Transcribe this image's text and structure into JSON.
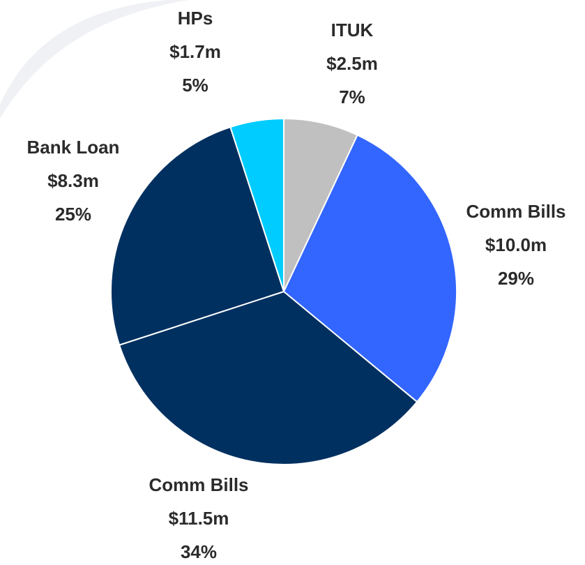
{
  "chart_data": {
    "type": "pie",
    "categories": [
      "ITUK",
      "Comm Bills",
      "Comm Bills",
      "Bank Loan",
      "HPs"
    ],
    "values": [
      7,
      29,
      34,
      25,
      5
    ],
    "value_labels": [
      "7%",
      "29%",
      "34%",
      "25%",
      "5%"
    ],
    "amounts": [
      2.5,
      10.0,
      11.5,
      8.3,
      1.7
    ],
    "amount_labels": [
      "$2.5m",
      "$10.0m",
      "$11.5m",
      "$8.3m",
      "$1.7m"
    ],
    "colors": [
      "#c0c0c0",
      "#3366ff",
      "#003060",
      "#003060",
      "#00ccff"
    ]
  }
}
